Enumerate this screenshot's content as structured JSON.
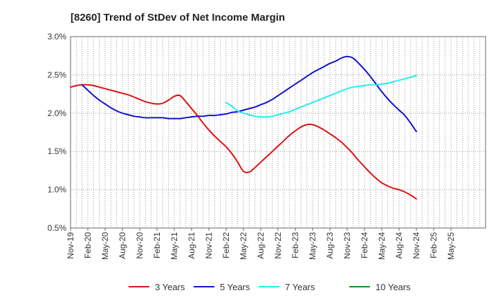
{
  "chart_data": {
    "type": "line",
    "title": "[8260]  Trend of StDev of Net Income Margin",
    "xlabel": "",
    "ylabel": "",
    "x_start": "Nov-19",
    "x_end": "Nov-25",
    "x_ticks": [
      "Nov-19",
      "Feb-20",
      "May-20",
      "Aug-20",
      "Nov-20",
      "Feb-21",
      "May-21",
      "Aug-21",
      "Nov-21",
      "Feb-22",
      "May-22",
      "Aug-22",
      "Nov-22",
      "Feb-23",
      "May-23",
      "Aug-23",
      "Nov-23",
      "Feb-24",
      "May-24",
      "Aug-24",
      "Nov-24",
      "Feb-25",
      "May-25"
    ],
    "y_ticks": [
      "0.5%",
      "1.0%",
      "1.5%",
      "2.0%",
      "2.5%",
      "3.0%"
    ],
    "ylim": [
      0.5,
      3.0
    ],
    "y_unit": "%",
    "grid": true,
    "legend_position": "bottom",
    "series": [
      {
        "name": "3 Years",
        "color": "#dd1111",
        "x": [
          "Nov-19",
          "Dec-19",
          "Jan-20",
          "Feb-20",
          "Mar-20",
          "Apr-20",
          "May-20",
          "Jun-20",
          "Jul-20",
          "Aug-20",
          "Sep-20",
          "Oct-20",
          "Nov-20",
          "Dec-20",
          "Jan-21",
          "Feb-21",
          "Mar-21",
          "Apr-21",
          "May-21",
          "Jun-21",
          "Jul-21",
          "Aug-21",
          "Sep-21",
          "Oct-21",
          "Nov-21",
          "Dec-21",
          "Jan-22",
          "Feb-22",
          "Mar-22",
          "Apr-22",
          "May-22",
          "Jun-22",
          "Jul-22",
          "Aug-22",
          "Sep-22",
          "Oct-22",
          "Nov-22",
          "Dec-22",
          "Jan-23",
          "Feb-23",
          "Mar-23",
          "Apr-23",
          "May-23",
          "Jun-23",
          "Jul-23",
          "Aug-23",
          "Sep-23",
          "Oct-23",
          "Nov-23",
          "Dec-23",
          "Jan-24",
          "Feb-24",
          "Mar-24",
          "Apr-24",
          "May-24",
          "Jun-24",
          "Jul-24",
          "Aug-24",
          "Sep-24",
          "Oct-24",
          "Nov-24"
        ],
        "values": [
          2.34,
          2.36,
          2.37,
          2.37,
          2.36,
          2.34,
          2.32,
          2.3,
          2.28,
          2.26,
          2.24,
          2.21,
          2.18,
          2.15,
          2.13,
          2.12,
          2.13,
          2.17,
          2.22,
          2.23,
          2.15,
          2.06,
          1.97,
          1.87,
          1.78,
          1.7,
          1.63,
          1.56,
          1.47,
          1.36,
          1.24,
          1.23,
          1.29,
          1.36,
          1.43,
          1.5,
          1.57,
          1.64,
          1.71,
          1.77,
          1.82,
          1.85,
          1.85,
          1.82,
          1.78,
          1.73,
          1.68,
          1.62,
          1.55,
          1.47,
          1.38,
          1.3,
          1.22,
          1.15,
          1.09,
          1.05,
          1.02,
          1.0,
          0.97,
          0.93,
          0.88
        ]
      },
      {
        "name": "5 Years",
        "color": "#1111cc",
        "x": [
          "Jan-20",
          "Feb-20",
          "Mar-20",
          "Apr-20",
          "May-20",
          "Jun-20",
          "Jul-20",
          "Aug-20",
          "Sep-20",
          "Oct-20",
          "Nov-20",
          "Dec-20",
          "Jan-21",
          "Feb-21",
          "Mar-21",
          "Apr-21",
          "May-21",
          "Jun-21",
          "Jul-21",
          "Aug-21",
          "Sep-21",
          "Oct-21",
          "Nov-21",
          "Dec-21",
          "Jan-22",
          "Feb-22",
          "Mar-22",
          "Apr-22",
          "May-22",
          "Jun-22",
          "Jul-22",
          "Aug-22",
          "Sep-22",
          "Oct-22",
          "Nov-22",
          "Dec-22",
          "Jan-23",
          "Feb-23",
          "Mar-23",
          "Apr-23",
          "May-23",
          "Jun-23",
          "Jul-23",
          "Aug-23",
          "Sep-23",
          "Oct-23",
          "Nov-23",
          "Dec-23",
          "Jan-24",
          "Feb-24",
          "Mar-24",
          "Apr-24",
          "May-24",
          "Jun-24",
          "Jul-24",
          "Aug-24",
          "Sep-24",
          "Oct-24",
          "Nov-24"
        ],
        "values": [
          2.37,
          2.3,
          2.23,
          2.17,
          2.12,
          2.07,
          2.03,
          2.0,
          1.98,
          1.96,
          1.95,
          1.94,
          1.94,
          1.94,
          1.94,
          1.93,
          1.93,
          1.93,
          1.94,
          1.95,
          1.96,
          1.96,
          1.97,
          1.97,
          1.98,
          1.99,
          2.01,
          2.02,
          2.04,
          2.06,
          2.08,
          2.11,
          2.14,
          2.18,
          2.23,
          2.28,
          2.33,
          2.38,
          2.43,
          2.48,
          2.53,
          2.57,
          2.61,
          2.65,
          2.68,
          2.72,
          2.74,
          2.72,
          2.65,
          2.57,
          2.48,
          2.38,
          2.28,
          2.19,
          2.11,
          2.04,
          1.97,
          1.87,
          1.76
        ]
      },
      {
        "name": "7 Years",
        "color": "#22eeee",
        "x": [
          "Feb-22",
          "Mar-22",
          "Apr-22",
          "May-22",
          "Jun-22",
          "Jul-22",
          "Aug-22",
          "Sep-22",
          "Oct-22",
          "Nov-22",
          "Dec-22",
          "Jan-23",
          "Feb-23",
          "Mar-23",
          "Apr-23",
          "May-23",
          "Jun-23",
          "Jul-23",
          "Aug-23",
          "Sep-23",
          "Oct-23",
          "Nov-23",
          "Dec-23",
          "Jan-24",
          "Feb-24",
          "Mar-24",
          "Apr-24",
          "May-24",
          "Jun-24",
          "Jul-24",
          "Aug-24",
          "Sep-24",
          "Oct-24",
          "Nov-24"
        ],
        "values": [
          2.14,
          2.09,
          2.03,
          2.0,
          1.98,
          1.96,
          1.95,
          1.95,
          1.96,
          1.98,
          2.0,
          2.02,
          2.05,
          2.08,
          2.11,
          2.14,
          2.17,
          2.2,
          2.23,
          2.26,
          2.29,
          2.32,
          2.34,
          2.35,
          2.36,
          2.37,
          2.37,
          2.38,
          2.39,
          2.41,
          2.43,
          2.45,
          2.47,
          2.49
        ]
      },
      {
        "name": "10 Years",
        "color": "#228822",
        "x": [],
        "values": []
      }
    ]
  }
}
